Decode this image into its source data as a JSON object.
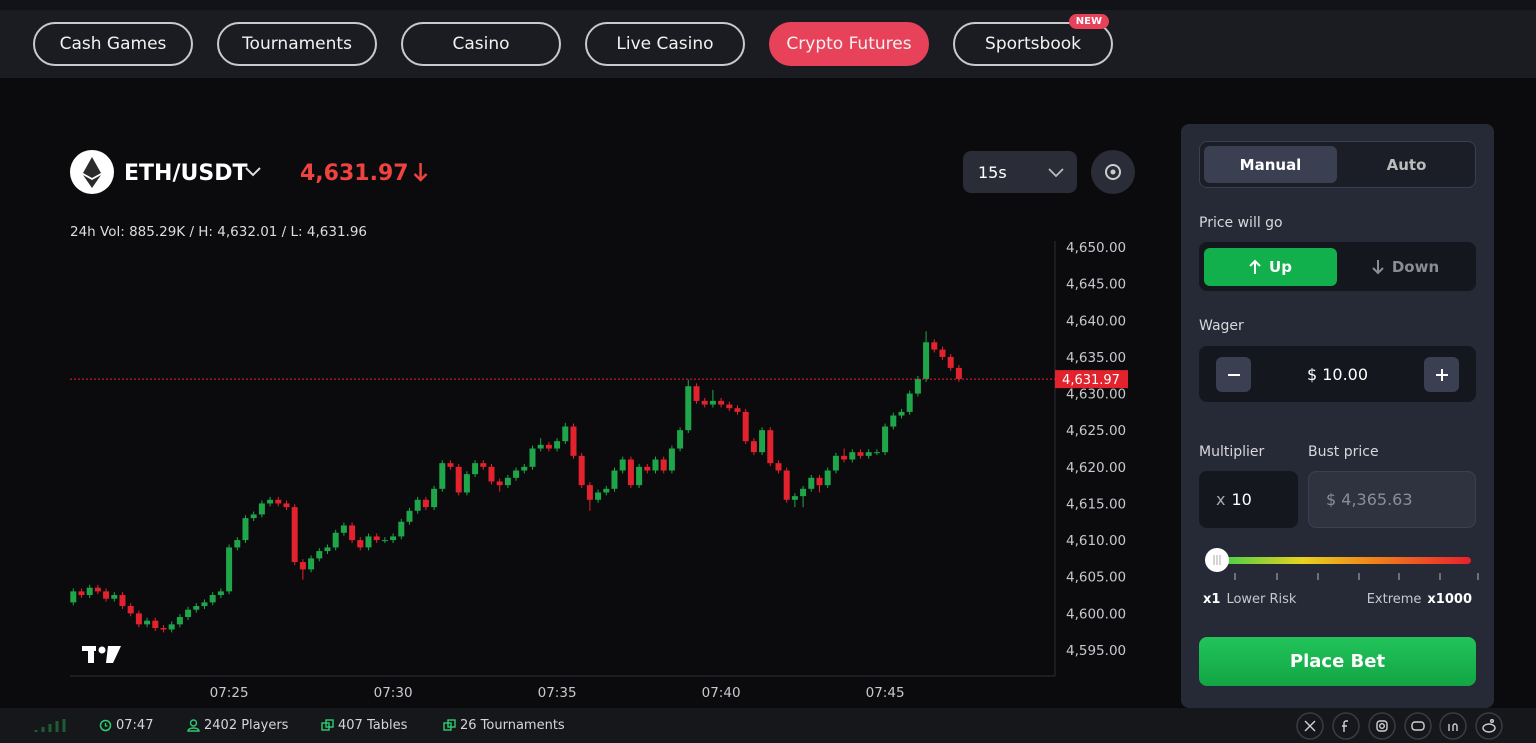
{
  "nav": {
    "tabs": [
      "Cash Games",
      "Tournaments",
      "Casino",
      "Live Casino",
      "Crypto Futures",
      "Sportsbook"
    ],
    "active_tab": 4,
    "new_badge": {
      "tab": 5,
      "text": "NEW"
    }
  },
  "header": {
    "pair": "ETH/USDT",
    "price": "4,631.97",
    "stats": "24h Vol: 885.29K / H: 4,632.01 / L: 4,631.96",
    "interval": "15s"
  },
  "chart_data": {
    "type": "candlestick",
    "up_color": "#1fa64a",
    "down_color": "#e2232d",
    "x": [
      20.25,
      20.5,
      20.75,
      21,
      21.25,
      21.5,
      21.75,
      22,
      22.25,
      22.5,
      22.75,
      23,
      23.25,
      23.5,
      23.75,
      24,
      24.25,
      24.5,
      24.75,
      25,
      25.25,
      25.5,
      25.75,
      26,
      26.25,
      26.5,
      26.75,
      27,
      27.25,
      27.5,
      27.75,
      28,
      28.25,
      28.5,
      28.75,
      29,
      29.25,
      29.5,
      29.75,
      30,
      30.25,
      30.5,
      30.75,
      31,
      31.25,
      31.5,
      31.75,
      32,
      32.25,
      32.5,
      32.75,
      33,
      33.25,
      33.5,
      33.75,
      34,
      34.25,
      34.5,
      34.75,
      35,
      35.25,
      35.5,
      35.75,
      36,
      36.25,
      36.5,
      36.75,
      37,
      37.25,
      37.5,
      37.75,
      38,
      38.25,
      38.5,
      38.75,
      39,
      39.25,
      39.5,
      39.75,
      40,
      40.25,
      40.5,
      40.75,
      41,
      41.25,
      41.5,
      41.75,
      42,
      42.25,
      42.5,
      42.75,
      43,
      43.25,
      43.5,
      43.75,
      44,
      44.25,
      44.5,
      44.75,
      45,
      45.25,
      45.5,
      45.75,
      46,
      46.25,
      46.5,
      46.75,
      47,
      47.25
    ],
    "open": [
      4601.5,
      4603,
      4602.5,
      4603.5,
      4603,
      4602,
      4602.5,
      4601,
      4600,
      4598.5,
      4599,
      4598,
      4597.8,
      4598.5,
      4599.5,
      4600.5,
      4601,
      4601.5,
      4602.5,
      4603,
      4609,
      4610,
      4613,
      4613.5,
      4615,
      4615.5,
      4615,
      4614.5,
      4607,
      4606,
      4607.5,
      4608.5,
      4609,
      4611,
      4612,
      4610,
      4609,
      4610.5,
      4610,
      4610,
      4610.5,
      4612.5,
      4614,
      4615.5,
      4614.5,
      4617,
      4620.5,
      4620,
      4616.5,
      4619,
      4620.5,
      4620,
      4618,
      4617.5,
      4618.5,
      4619.5,
      4620,
      4622.5,
      4623,
      4622.5,
      4623.5,
      4625.5,
      4621.5,
      4617.5,
      4615.5,
      4616.5,
      4617,
      4619.5,
      4621,
      4617.5,
      4620,
      4619.5,
      4621,
      4619.5,
      4622.5,
      4625,
      4631,
      4629,
      4628.5,
      4629,
      4628.5,
      4628,
      4627.5,
      4623.5,
      4622,
      4625,
      4620.5,
      4619.5,
      4615.5,
      4616,
      4617,
      4618.5,
      4617.5,
      4619.5,
      4621.5,
      4621,
      4622,
      4621.5,
      4622,
      4622,
      4625.5,
      4627,
      4627.5,
      4630,
      4632,
      4637,
      4636,
      4635,
      4633.5
    ],
    "high": [
      4603.4,
      4603.4,
      4603.9,
      4603.9,
      4603.4,
      4602.9,
      4602.9,
      4601.4,
      4600.4,
      4599.4,
      4599.4,
      4598.4,
      4598.9,
      4599.9,
      4600.9,
      4601.4,
      4601.9,
      4602.9,
      4603.4,
      4609.4,
      4610.4,
      4613.4,
      4613.9,
      4615.4,
      4615.9,
      4615.9,
      4615.4,
      4614.9,
      4607.4,
      4607.9,
      4608.9,
      4609.4,
      4611.4,
      4612.4,
      4612.4,
      4610.4,
      4610.9,
      4610.9,
      4610.4,
      4610.9,
      4612.9,
      4614.4,
      4615.9,
      4615.9,
      4617.4,
      4620.9,
      4620.9,
      4620.4,
      4619.4,
      4620.9,
      4620.9,
      4620.4,
      4618.4,
      4618.9,
      4619.9,
      4620.4,
      4622.9,
      4623.9,
      4623.4,
      4623.9,
      4626,
      4625.9,
      4621.9,
      4617.9,
      4616.9,
      4617.4,
      4619.9,
      4621.4,
      4621.4,
      4620.4,
      4620.4,
      4621.4,
      4621.4,
      4622.9,
      4625.4,
      4631.9,
      4631.4,
      4629.4,
      4630.5,
      4629.4,
      4628.9,
      4628.4,
      4627.9,
      4623.9,
      4625.4,
      4625.4,
      4620.9,
      4619.9,
      4616.4,
      4617.4,
      4618.9,
      4618.9,
      4619.9,
      4621.9,
      4622.5,
      4622.4,
      4622.4,
      4622.4,
      4622.4,
      4625.9,
      4627.4,
      4627.9,
      4630.4,
      4632.4,
      4638.5,
      4637.4,
      4636.4,
      4635.4,
      4633.9
    ],
    "low": [
      4601.1,
      4602.1,
      4602.1,
      4602.6,
      4601.6,
      4601.6,
      4600.6,
      4599.6,
      4598.1,
      4598.1,
      4597.6,
      4597.4,
      4597.4,
      4598.1,
      4599.1,
      4600.1,
      4600.6,
      4601.1,
      4602.1,
      4602.6,
      4608.6,
      4609.6,
      4612.6,
      4613.1,
      4614.6,
      4614.6,
      4614.1,
      4606.6,
      4604.6,
      4605.6,
      4607.1,
      4608.1,
      4608.6,
      4610.6,
      4609.6,
      4608.6,
      4608.6,
      4609.6,
      4609.6,
      4609.6,
      4610.1,
      4612.1,
      4613.6,
      4614.1,
      4614.1,
      4616.6,
      4619.6,
      4616.1,
      4616.1,
      4618.6,
      4619.6,
      4617.6,
      4616.6,
      4617.1,
      4618.1,
      4619.1,
      4619.6,
      4622.1,
      4622.1,
      4622.1,
      4623.1,
      4621.1,
      4617.1,
      4614,
      4615.1,
      4616.1,
      4616.6,
      4619.1,
      4617.1,
      4617.1,
      4619.1,
      4619.1,
      4619.1,
      4619.1,
      4622.1,
      4624.6,
      4628.6,
      4628.1,
      4628.1,
      4628.1,
      4627.6,
      4627.1,
      4623.1,
      4621.6,
      4621.6,
      4620.1,
      4619.1,
      4615.1,
      4614.5,
      4614.5,
      4616.6,
      4616.5,
      4617.1,
      4619.1,
      4620.6,
      4620.6,
      4621.1,
      4621.1,
      4621.6,
      4621.6,
      4625.1,
      4626.6,
      4627.1,
      4629.6,
      4631.6,
      4635.6,
      4634.6,
      4633.1,
      4631.6
    ],
    "close": [
      4603,
      4602.5,
      4603.5,
      4603,
      4602,
      4602.5,
      4601,
      4600,
      4598.5,
      4599,
      4598,
      4597.8,
      4598.5,
      4599.5,
      4600.5,
      4601,
      4601.5,
      4602.5,
      4603,
      4609,
      4610,
      4613,
      4613.5,
      4615,
      4615.5,
      4615,
      4614.5,
      4607,
      4606,
      4607.5,
      4608.5,
      4609,
      4611,
      4612,
      4610,
      4609,
      4610.5,
      4610,
      4610,
      4610.5,
      4612.5,
      4614,
      4615.5,
      4614.5,
      4617,
      4620.5,
      4620,
      4616.5,
      4619,
      4620.5,
      4620,
      4618,
      4617.5,
      4618.5,
      4619.5,
      4620,
      4622.5,
      4623,
      4622.5,
      4623.5,
      4625.5,
      4621.5,
      4617.5,
      4615.5,
      4616.5,
      4617,
      4619.5,
      4621,
      4617.5,
      4620,
      4619.5,
      4621,
      4619.5,
      4622.5,
      4625,
      4631,
      4629,
      4628.5,
      4629,
      4628.5,
      4628,
      4627.5,
      4623.5,
      4622,
      4625,
      4620.5,
      4619.5,
      4615.5,
      4616,
      4617,
      4618.5,
      4617.5,
      4619.5,
      4621.5,
      4621,
      4622,
      4621.5,
      4622,
      4622,
      4625.5,
      4627,
      4627.5,
      4630,
      4632,
      4637,
      4636,
      4635,
      4633.5,
      4632
    ],
    "xlim": [
      20.15,
      50.18
    ],
    "xticks": [
      {
        "value": 25,
        "label": "07:25"
      },
      {
        "value": 30,
        "label": "07:30"
      },
      {
        "value": 35,
        "label": "07:35"
      },
      {
        "value": 40,
        "label": "07:40"
      },
      {
        "value": 45,
        "label": "07:45"
      }
    ],
    "ylim": [
      4591.45,
      4650.55
    ],
    "yticks": [
      {
        "value": 4595,
        "label": "4,595.00"
      },
      {
        "value": 4600,
        "label": "4,600.00"
      },
      {
        "value": 4605,
        "label": "4,605.00"
      },
      {
        "value": 4610,
        "label": "4,610.00"
      },
      {
        "value": 4615,
        "label": "4,615.00"
      },
      {
        "value": 4620,
        "label": "4,620.00"
      },
      {
        "value": 4625,
        "label": "4,625.00"
      },
      {
        "value": 4630,
        "label": "4,630.00"
      },
      {
        "value": 4635,
        "label": "4,635.00"
      },
      {
        "value": 4640,
        "label": "4,640.00"
      },
      {
        "value": 4645,
        "label": "4,645.00"
      },
      {
        "value": 4650,
        "label": "4,650.00"
      }
    ],
    "last_price": {
      "value": 4631.97,
      "label": "4,631.97"
    }
  },
  "panel": {
    "modes": [
      "Manual",
      "Auto"
    ],
    "direction_label": "Price will go",
    "up": "Up",
    "down": "Down",
    "wager_label": "Wager",
    "wager": "$ 10.00",
    "multiplier_label": "Multiplier",
    "multiplier_prefix": "x",
    "multiplier": "10",
    "bust_label": "Bust price",
    "bust_price": "$ 4,365.63",
    "risk_min": "x1",
    "risk_min_label": "Lower Risk",
    "risk_max_label": "Extreme",
    "risk_max": "x1000",
    "place_bet": "Place Bet"
  },
  "footer": {
    "time": "07:47",
    "players": "2402 Players",
    "tables": "407 Tables",
    "tournaments": "26 Tournaments"
  }
}
